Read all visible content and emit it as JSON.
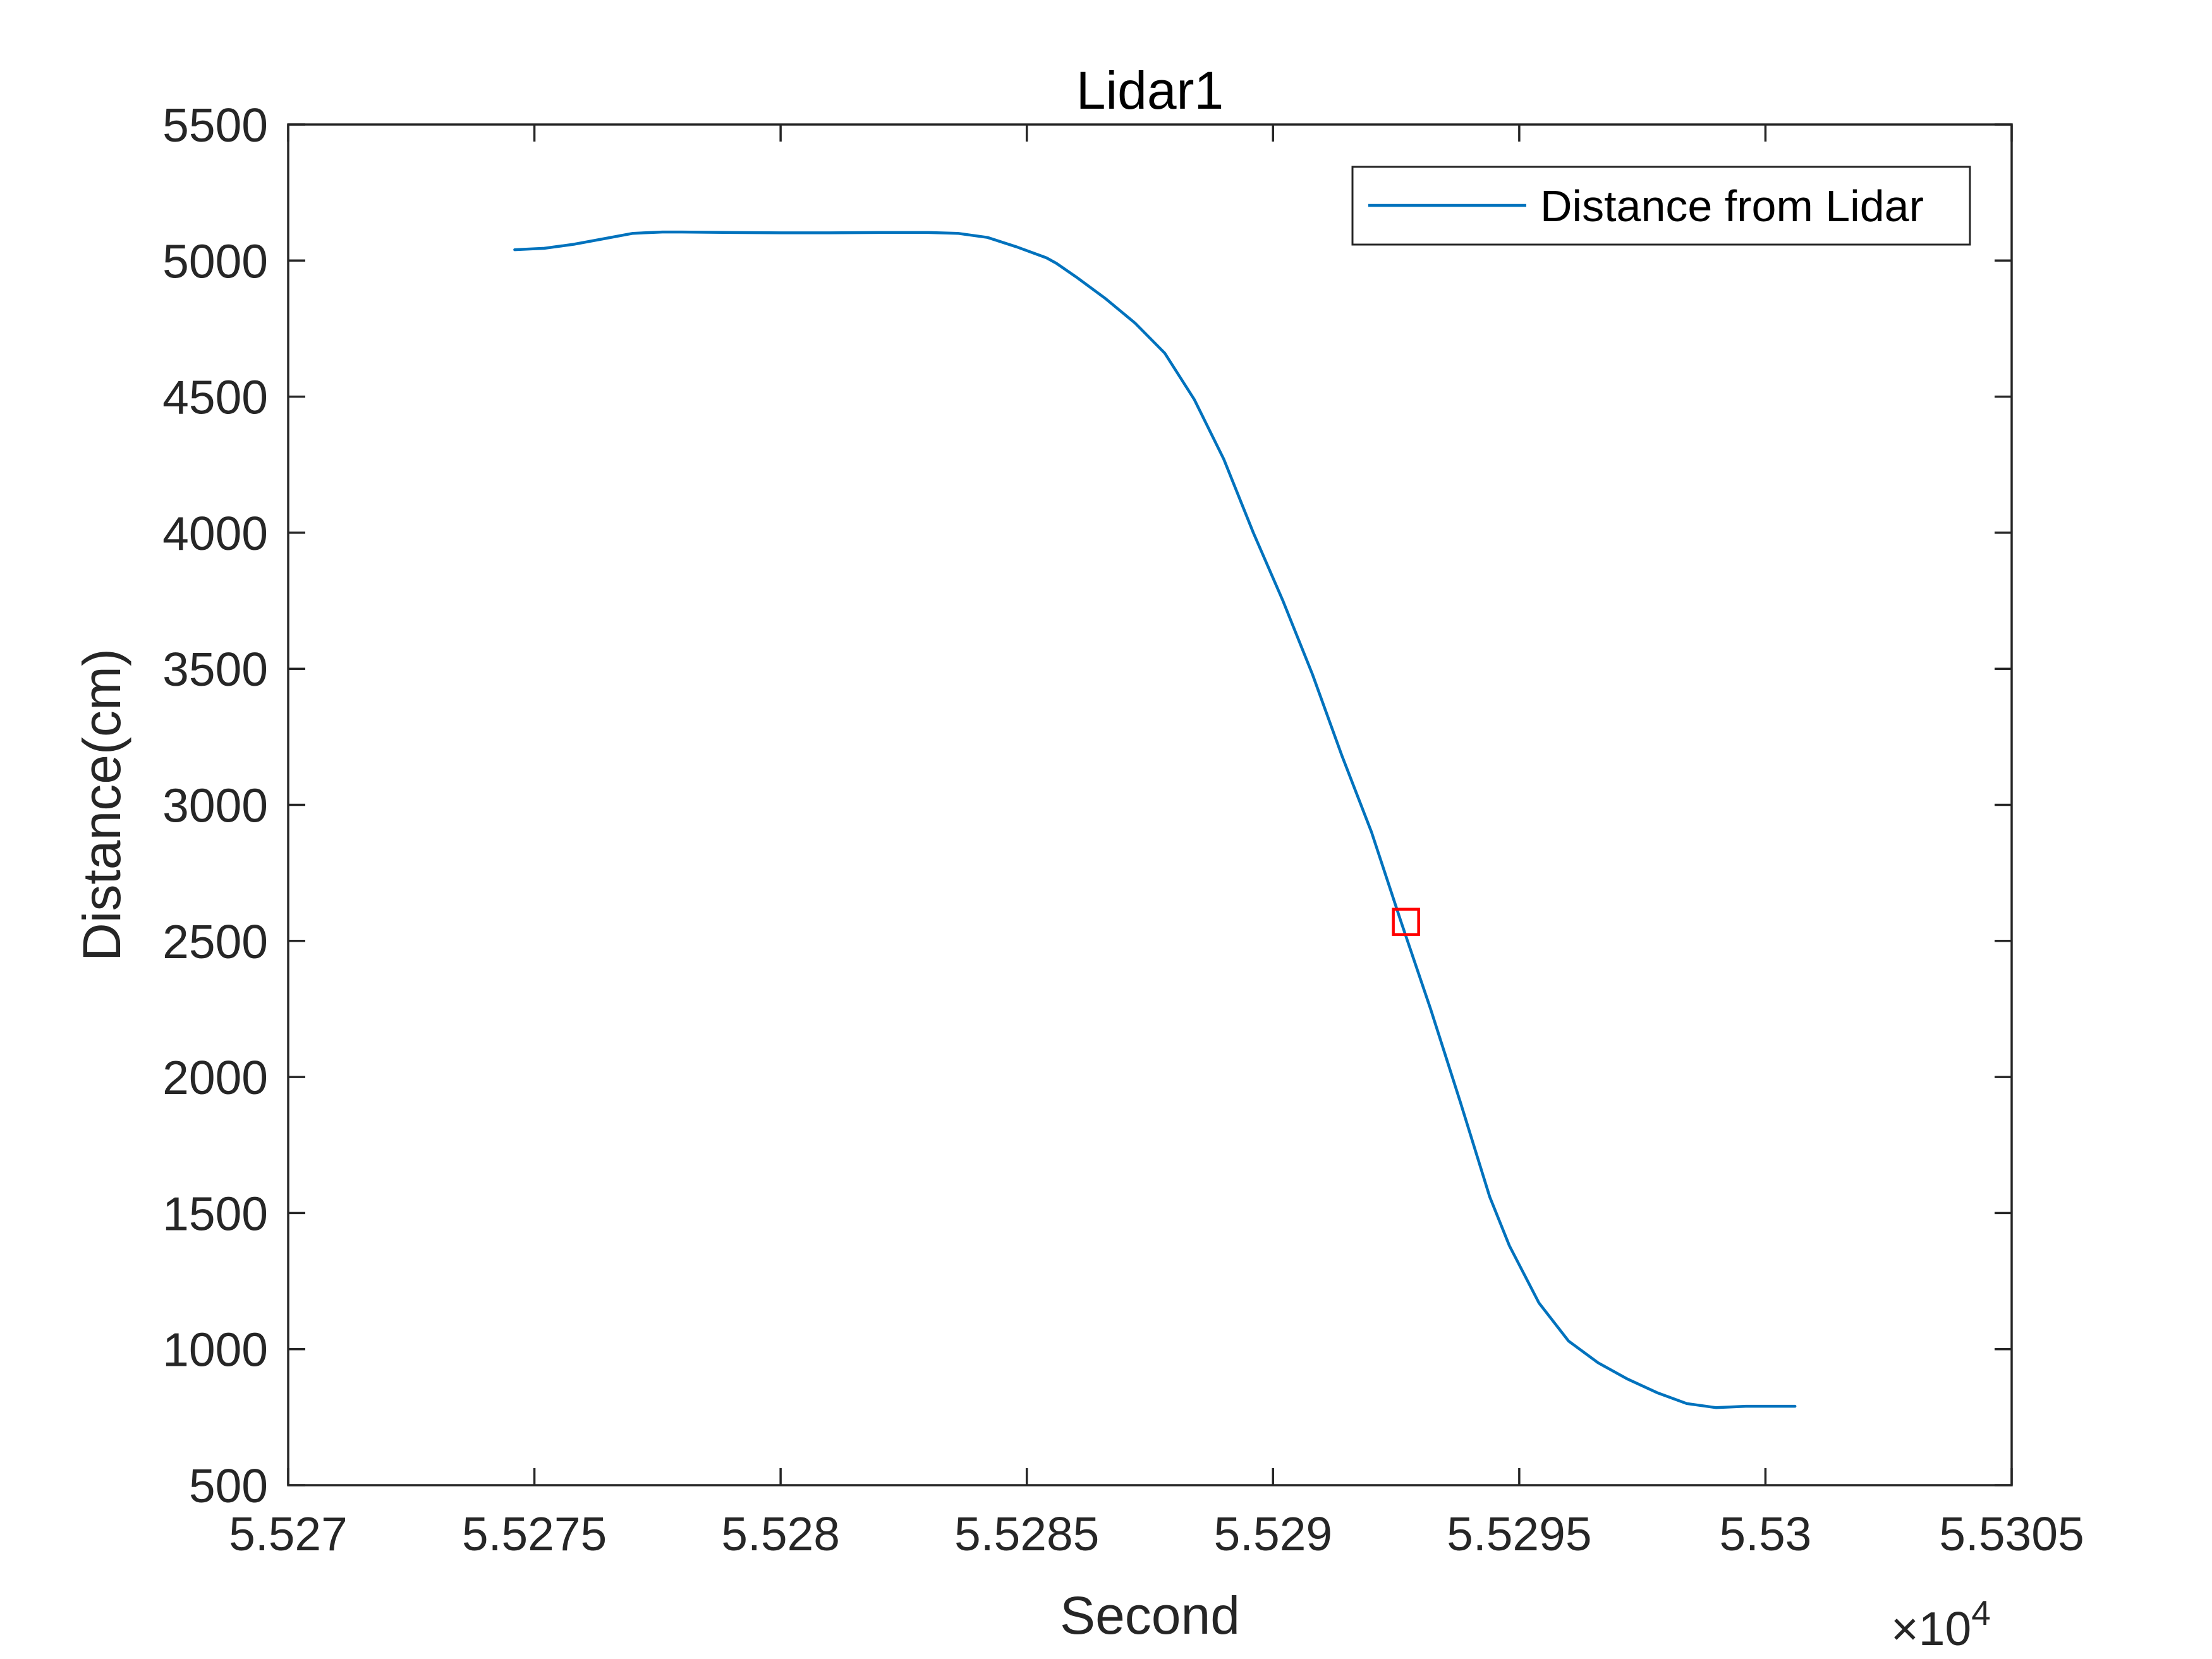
{
  "chart_data": {
    "type": "line",
    "title": "Lidar1",
    "xlabel": "Second",
    "ylabel": "Distance(cm)",
    "x_exponent_label": "×10",
    "x_exponent_power": "4",
    "xlim": [
      5.527,
      5.5305
    ],
    "ylim": [
      500,
      5500
    ],
    "x_ticks": [
      5.527,
      5.5275,
      5.528,
      5.5285,
      5.529,
      5.5295,
      5.53,
      5.5305
    ],
    "x_tick_labels": [
      "5.527",
      "5.5275",
      "5.528",
      "5.5285",
      "5.529",
      "5.5295",
      "5.53",
      "5.5305"
    ],
    "y_ticks": [
      500,
      1000,
      1500,
      2000,
      2500,
      3000,
      3500,
      4000,
      4500,
      5000,
      5500
    ],
    "y_tick_labels": [
      "500",
      "1000",
      "1500",
      "2000",
      "2500",
      "3000",
      "3500",
      "4000",
      "4500",
      "5000",
      "5500"
    ],
    "grid": false,
    "legend": {
      "placement": "top-right"
    },
    "series": [
      {
        "name": "Distance from Lidar",
        "color": "#0072BD",
        "x": [
          5.52746,
          5.52752,
          5.52758,
          5.52764,
          5.5277,
          5.52776,
          5.5278,
          5.5279,
          5.528,
          5.5281,
          5.5282,
          5.5283,
          5.52836,
          5.52842,
          5.52848,
          5.52854,
          5.52856,
          5.5286,
          5.52866,
          5.52872,
          5.52878,
          5.52884,
          5.5289,
          5.52896,
          5.52902,
          5.52908,
          5.52914,
          5.5292,
          5.52926,
          5.52932,
          5.52938,
          5.52944,
          5.52948,
          5.52954,
          5.5296,
          5.52966,
          5.52972,
          5.52978,
          5.52984,
          5.5299,
          5.52996,
          5.52999,
          5.53006
        ],
        "y": [
          5040,
          5045,
          5060,
          5080,
          5100,
          5105,
          5105,
          5103,
          5102,
          5102,
          5103,
          5103,
          5100,
          5085,
          5050,
          5010,
          4990,
          4940,
          4860,
          4770,
          4660,
          4490,
          4270,
          4000,
          3750,
          3480,
          3180,
          2900,
          2570,
          2250,
          1910,
          1560,
          1380,
          1170,
          1030,
          950,
          890,
          840,
          800,
          785,
          790,
          790,
          790
        ]
      }
    ],
    "marker": {
      "x": 5.52927,
      "y": 2570,
      "shape": "square",
      "color": "#FF0000"
    }
  }
}
